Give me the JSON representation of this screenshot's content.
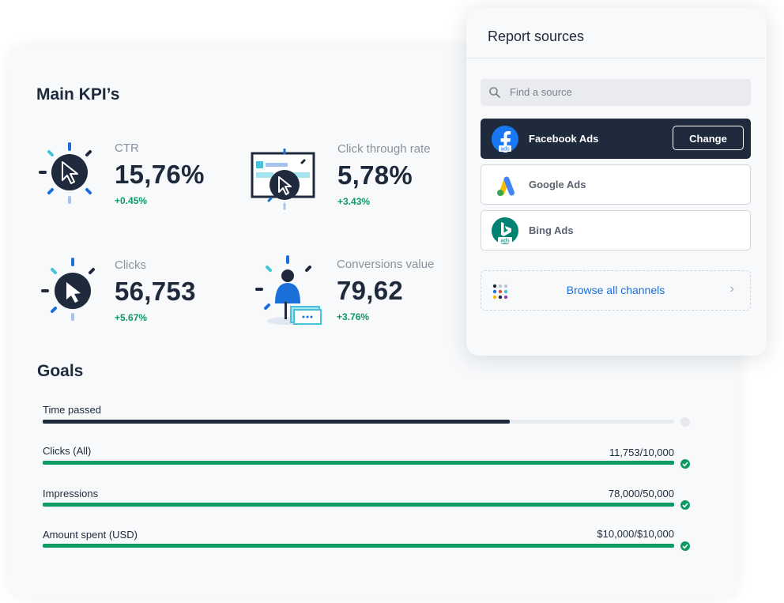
{
  "kpi": {
    "title": "Main KPI’s",
    "items": [
      {
        "label": "CTR",
        "value": "15,76%",
        "delta": "+0.45%",
        "icon": "cursor-arrow-icon"
      },
      {
        "label": "Click through rate",
        "value": "5,78%",
        "delta": "+3.43%",
        "icon": "screen-click-icon"
      },
      {
        "label": "Clicks",
        "value": "56,753",
        "delta": "+5.67%",
        "icon": "cursor-click-icon"
      },
      {
        "label": "Conversions value",
        "value": "79,62",
        "delta": "+3.76%",
        "icon": "person-money-icon"
      }
    ]
  },
  "goals": {
    "title": "Goals",
    "items": [
      {
        "label": "Time passed",
        "value": "",
        "progress": 0.74,
        "status": "pending"
      },
      {
        "label": "Clicks (All)",
        "value": "11,753/10,000",
        "progress": 1.0,
        "status": "done"
      },
      {
        "label": "Impressions",
        "value": "78,000/50,000",
        "progress": 1.0,
        "status": "done"
      },
      {
        "label": "Amount spent (USD)",
        "value": "$10,000/$10,000",
        "progress": 1.0,
        "status": "done"
      }
    ]
  },
  "report_sources": {
    "title": "Report sources",
    "search_placeholder": "Find a source",
    "sources": [
      {
        "name": "Facebook Ads",
        "active": true,
        "icon": "facebook-ads-logo",
        "logo_text": "ads"
      },
      {
        "name": "Google Ads",
        "active": false,
        "icon": "google-ads-logo"
      },
      {
        "name": "Bing Ads",
        "active": false,
        "icon": "bing-ads-logo",
        "logo_text": "ads"
      }
    ],
    "change_label": "Change",
    "browse_label": "Browse all channels"
  },
  "colors": {
    "dark": "#1f2a3c",
    "green": "#0e9a63",
    "blue": "#1b6fd8",
    "facebook": "#1877f2",
    "bing": "#008373"
  }
}
